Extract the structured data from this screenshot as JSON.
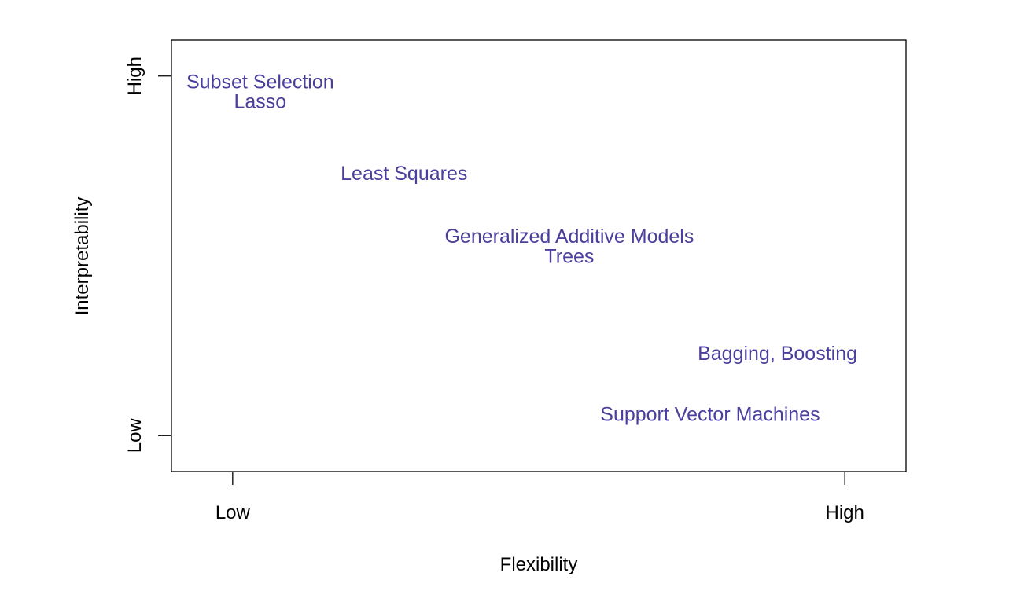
{
  "chart_data": {
    "type": "scatter",
    "title": "",
    "xlabel": "Flexibility",
    "ylabel": "Interpretability",
    "x_ticks": [
      {
        "value": 0,
        "label": "Low"
      },
      {
        "value": 1,
        "label": "High"
      }
    ],
    "y_ticks": [
      {
        "value": 0,
        "label": "Low"
      },
      {
        "value": 1,
        "label": "High"
      }
    ],
    "xlim": [
      -0.1,
      1.1
    ],
    "ylim": [
      -0.1,
      1.1
    ],
    "grid": false,
    "text_color": "#4b3f9e",
    "points": [
      {
        "label": "Subset Selection",
        "x": 0.045,
        "y": 0.98
      },
      {
        "label": "Lasso",
        "x": 0.045,
        "y": 0.925
      },
      {
        "label": "Least Squares",
        "x": 0.28,
        "y": 0.725
      },
      {
        "label": "Generalized Additive Models",
        "x": 0.55,
        "y": 0.55
      },
      {
        "label": "Trees",
        "x": 0.55,
        "y": 0.495
      },
      {
        "label": "Bagging, Boosting",
        "x": 0.89,
        "y": 0.225
      },
      {
        "label": "Support Vector Machines",
        "x": 0.78,
        "y": 0.055
      }
    ]
  }
}
